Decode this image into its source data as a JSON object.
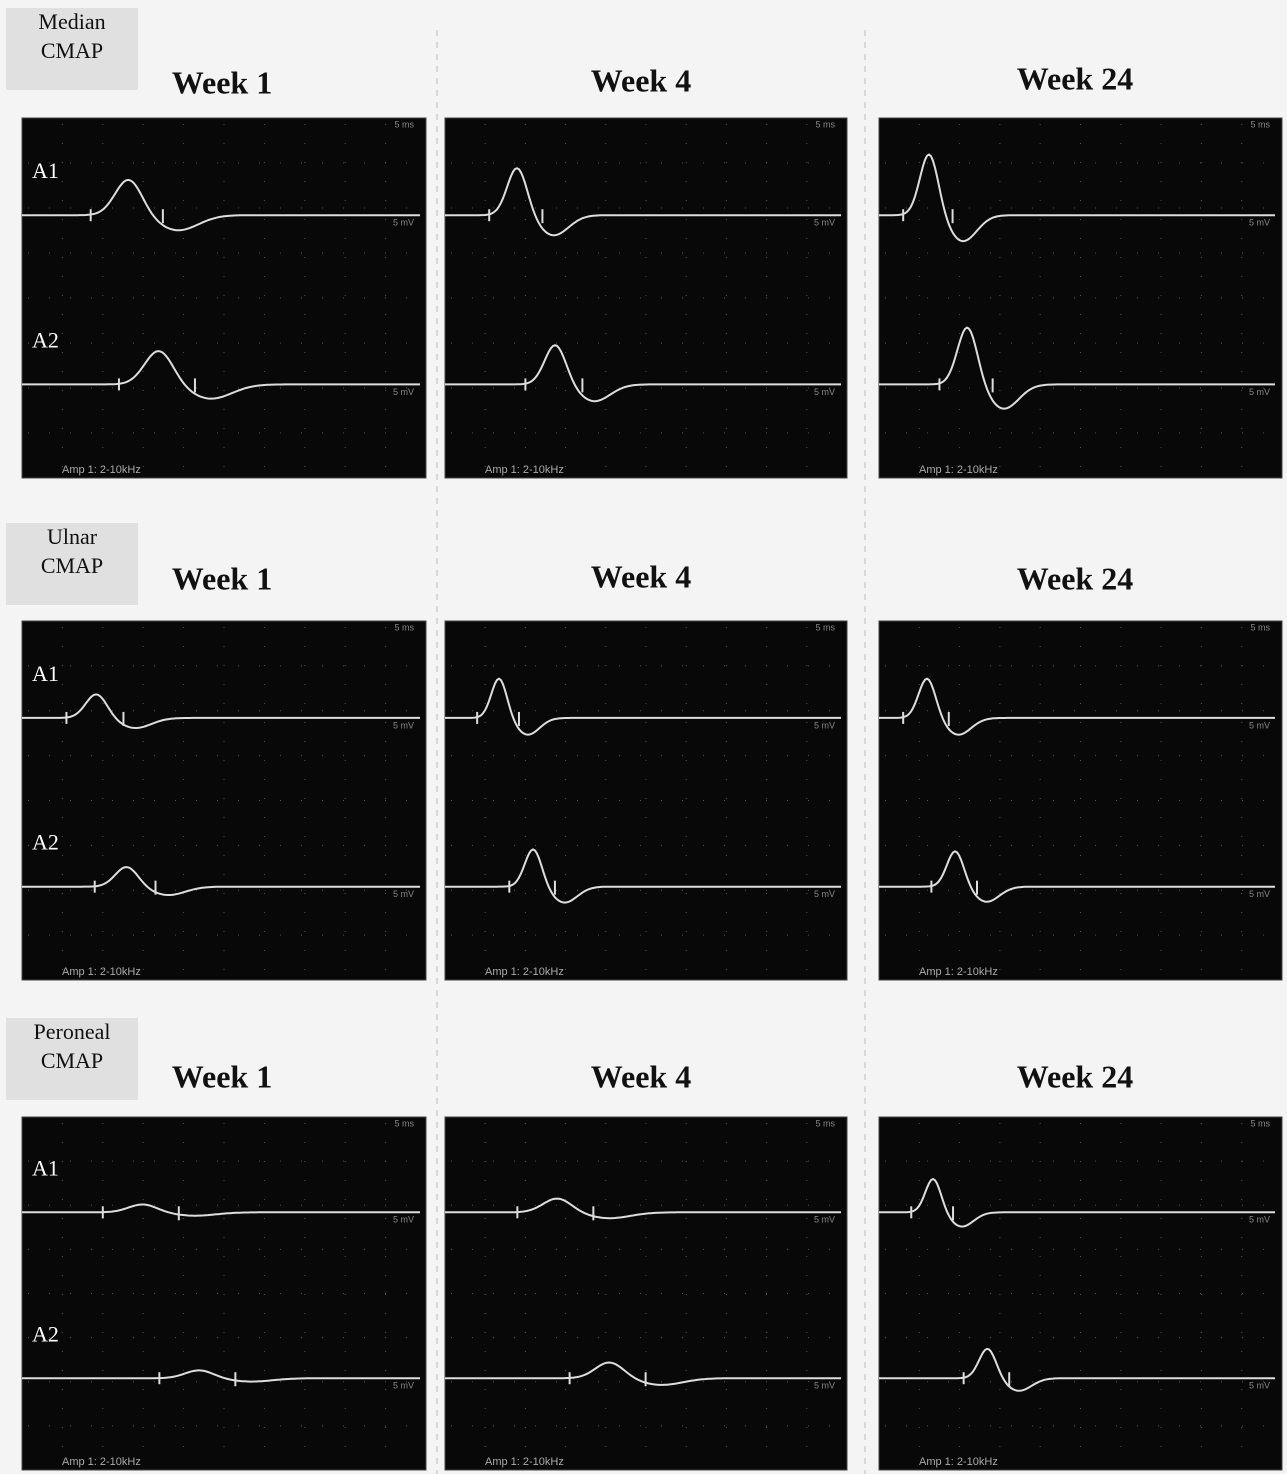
{
  "rows": [
    {
      "label": [
        "Median",
        "CMAP"
      ],
      "panels": [
        {
          "title": "Week 1",
          "traces": [
            "A1",
            "A2"
          ],
          "time_scale": "5 ms",
          "volt_scales": [
            "5 mV",
            "5 mV"
          ],
          "filter": "Amp 1: 2-10kHz"
        },
        {
          "title": "Week 4",
          "time_scale": "5 ms",
          "volt_scales": [
            "5 mV",
            "5 mV"
          ],
          "filter": "Amp 1: 2-10kHz"
        },
        {
          "title": "Week 24",
          "time_scale": "5 ms",
          "volt_scales": [
            "5 mV",
            "5 mV"
          ],
          "filter": "Amp 1: 2-10kHz"
        }
      ]
    },
    {
      "label": [
        "Ulnar",
        "CMAP"
      ],
      "panels": [
        {
          "title": "Week 1",
          "traces": [
            "A1",
            "A2"
          ],
          "time_scale": "5 ms",
          "volt_scales": [
            "5 mV",
            "5 mV"
          ],
          "filter": "Amp 1: 2-10kHz"
        },
        {
          "title": "Week 4",
          "time_scale": "5 ms",
          "volt_scales": [
            "5 mV",
            "5 mV"
          ],
          "filter": "Amp 1: 2-10kHz"
        },
        {
          "title": "Week 24",
          "time_scale": "5 ms",
          "volt_scales": [
            "5 mV",
            "5 mV"
          ],
          "filter": "Amp 1: 2-10kHz"
        }
      ]
    },
    {
      "label": [
        "Peroneal",
        "CMAP"
      ],
      "panels": [
        {
          "title": "Week 1",
          "traces": [
            "A1",
            "A2"
          ],
          "time_scale": "5 ms",
          "volt_scales": [
            "5 mV",
            "5 mV"
          ],
          "filter": "Amp 1: 2-10kHz"
        },
        {
          "title": "Week 4",
          "time_scale": "5 ms",
          "volt_scales": [
            "5 mV",
            "5 mV"
          ],
          "filter": "Amp 1: 2-10kHz"
        },
        {
          "title": "Week 24",
          "time_scale": "5 ms",
          "volt_scales": [
            "5 mV",
            "5 mV"
          ],
          "filter": "Amp 1: 2-10kHz"
        }
      ]
    }
  ]
}
